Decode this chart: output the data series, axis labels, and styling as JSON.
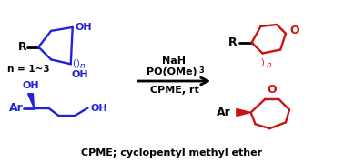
{
  "bg_color": "#ffffff",
  "blue_color": "#2222dd",
  "red_color": "#cc1111",
  "black_color": "#000000",
  "title_text": "CPME; cyclopentyl methyl ether",
  "reagent_line1": "NaH",
  "reagent_line3": "CPME, rt",
  "n_label_left": "n = 1~3",
  "oh_label": "OH",
  "R_label": "R",
  "Ar_label": "Ar",
  "O_label": "O",
  "n_label": "n",
  "figsize": [
    3.78,
    1.79
  ],
  "dpi": 100
}
